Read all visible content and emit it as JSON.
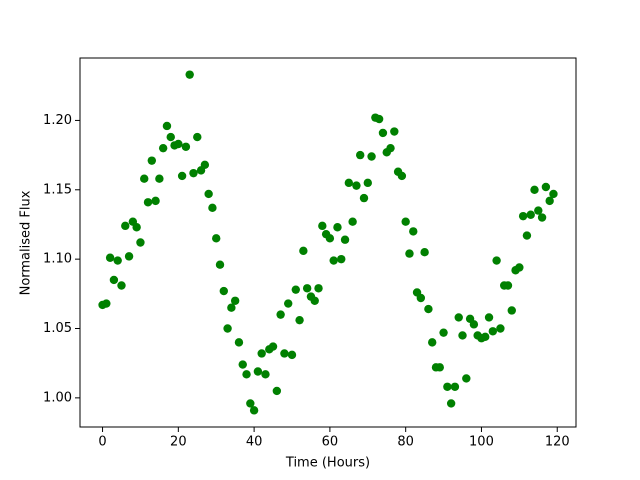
{
  "chart_data": {
    "type": "scatter",
    "x_label": "Time (Hours)",
    "y_label": "Normalised Flux",
    "color": "#008000",
    "x": [
      0,
      1,
      2,
      3,
      4,
      5,
      6,
      7,
      8,
      9,
      10,
      11,
      12,
      13,
      14,
      15,
      16,
      17,
      18,
      19,
      20,
      21,
      22,
      23,
      24,
      25,
      26,
      27,
      28,
      29,
      30,
      31,
      32,
      33,
      34,
      35,
      36,
      37,
      38,
      39,
      40,
      41,
      42,
      43,
      44,
      45,
      46,
      47,
      48,
      49,
      50,
      51,
      52,
      53,
      54,
      55,
      56,
      57,
      58,
      59,
      60,
      61,
      62,
      63,
      64,
      65,
      66,
      67,
      68,
      69,
      70,
      71,
      72,
      73,
      74,
      75,
      76,
      77,
      78,
      79,
      80,
      81,
      82,
      83,
      84,
      85,
      86,
      87,
      88,
      89,
      90,
      91,
      92,
      93,
      94,
      95,
      96,
      97,
      98,
      99,
      100,
      101,
      102,
      103,
      104,
      105,
      106,
      107,
      108,
      109,
      110,
      111,
      112,
      113,
      114,
      115,
      116,
      117,
      118,
      119
    ],
    "values": [
      1.067,
      1.068,
      1.101,
      1.085,
      1.099,
      1.081,
      1.124,
      1.102,
      1.127,
      1.123,
      1.112,
      1.158,
      1.141,
      1.171,
      1.142,
      1.158,
      1.18,
      1.196,
      1.188,
      1.182,
      1.183,
      1.16,
      1.181,
      1.233,
      1.162,
      1.188,
      1.164,
      1.168,
      1.147,
      1.137,
      1.115,
      1.096,
      1.077,
      1.05,
      1.065,
      1.07,
      1.04,
      1.024,
      1.017,
      0.996,
      0.991,
      1.019,
      1.032,
      1.017,
      1.035,
      1.037,
      1.005,
      1.06,
      1.032,
      1.068,
      1.031,
      1.078,
      1.056,
      1.106,
      1.079,
      1.073,
      1.07,
      1.079,
      1.124,
      1.118,
      1.115,
      1.099,
      1.123,
      1.1,
      1.114,
      1.155,
      1.127,
      1.153,
      1.175,
      1.144,
      1.155,
      1.174,
      1.202,
      1.201,
      1.191,
      1.177,
      1.18,
      1.192,
      1.163,
      1.16,
      1.127,
      1.104,
      1.12,
      1.076,
      1.072,
      1.105,
      1.064,
      1.04,
      1.022,
      1.022,
      1.047,
      1.008,
      0.996,
      1.008,
      1.058,
      1.045,
      1.014,
      1.057,
      1.053,
      1.045,
      1.043,
      1.044,
      1.058,
      1.048,
      1.099,
      1.05,
      1.081,
      1.081,
      1.063,
      1.092,
      1.094,
      1.131,
      1.117,
      1.132,
      1.15,
      1.135,
      1.13,
      1.152,
      1.142,
      1.147
    ],
    "xlim": [
      -5.95,
      124.95
    ],
    "ylim": [
      0.979,
      1.245
    ],
    "xticks": [
      0,
      20,
      40,
      60,
      80,
      100,
      120
    ],
    "yticks": [
      {
        "value": 1,
        "label": "1.00"
      },
      1.05,
      {
        "value": 1.1,
        "label": "1.10"
      },
      1.15,
      {
        "value": 1.2,
        "label": "1.20"
      }
    ],
    "grid": false
  }
}
